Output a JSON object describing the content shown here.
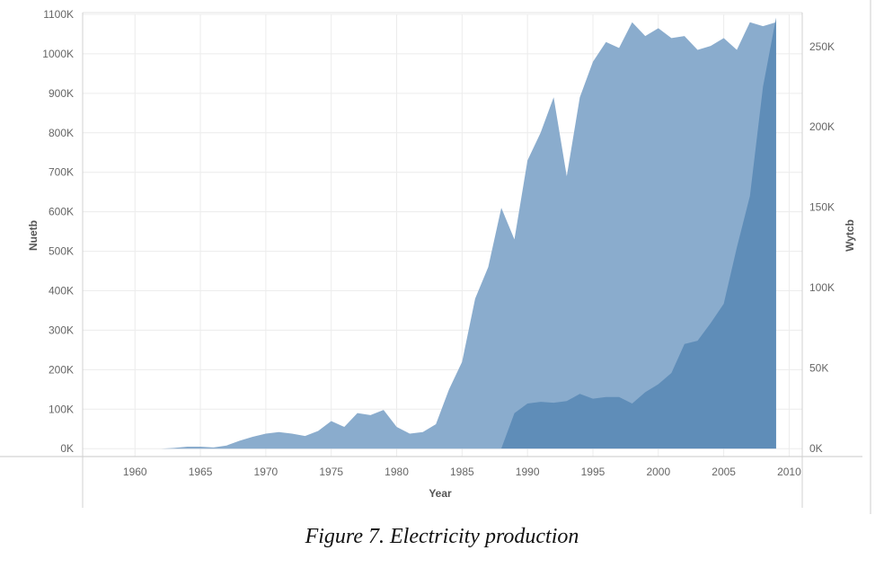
{
  "caption": "Figure 7. Electricity production",
  "chart_data": {
    "type": "area",
    "xlabel": "Year",
    "ylabel": "Nuetb",
    "y2label": "Wytcb",
    "xlim": [
      1956,
      2011
    ],
    "ylim": [
      -20000,
      1100000
    ],
    "y2lim": [
      -5000,
      270000
    ],
    "x_ticks": [
      1960,
      1965,
      1970,
      1975,
      1980,
      1985,
      1990,
      1995,
      2000,
      2005,
      2010
    ],
    "y_ticks": [
      0,
      100000,
      200000,
      300000,
      400000,
      500000,
      600000,
      700000,
      800000,
      900000,
      1000000,
      1100000
    ],
    "y_tick_labels": [
      "0K",
      "100K",
      "200K",
      "300K",
      "400K",
      "500K",
      "600K",
      "700K",
      "800K",
      "900K",
      "1000K",
      "1100K"
    ],
    "y2_ticks": [
      0,
      50000,
      100000,
      150000,
      200000,
      250000
    ],
    "y2_tick_labels": [
      "0K",
      "50K",
      "100K",
      "150K",
      "200K",
      "250K"
    ],
    "grid": true,
    "colors": {
      "Nuetb": "#8aaccd",
      "Wytcb": "#5f8db8"
    },
    "series": [
      {
        "name": "Nuetb",
        "axis": "left",
        "x": [
          1960,
          1961,
          1962,
          1963,
          1964,
          1965,
          1966,
          1967,
          1968,
          1969,
          1970,
          1971,
          1972,
          1973,
          1974,
          1975,
          1976,
          1977,
          1978,
          1979,
          1980,
          1981,
          1982,
          1983,
          1984,
          1985,
          1986,
          1987,
          1988,
          1989,
          1990,
          1991,
          1992,
          1993,
          1994,
          1995,
          1996,
          1997,
          1998,
          1999,
          2000,
          2001,
          2002,
          2003,
          2004,
          2005,
          2006,
          2007,
          2008,
          2009
        ],
        "values": [
          0,
          0,
          0,
          2000,
          5000,
          5000,
          3000,
          8000,
          20000,
          30000,
          38000,
          42000,
          38000,
          32000,
          45000,
          70000,
          55000,
          90000,
          85000,
          98000,
          55000,
          38000,
          42000,
          62000,
          150000,
          220000,
          380000,
          460000,
          610000,
          530000,
          730000,
          800000,
          890000,
          690000,
          890000,
          980000,
          1030000,
          1015000,
          1080000,
          1045000,
          1065000,
          1040000,
          1045000,
          1010000,
          1020000,
          1040000,
          1010000,
          1080000,
          1070000,
          1080000
        ]
      },
      {
        "name": "Wytcb",
        "axis": "right",
        "x": [
          1988,
          1989,
          1990,
          1991,
          1992,
          1993,
          1994,
          1995,
          1996,
          1997,
          1998,
          1999,
          2000,
          2001,
          2002,
          2003,
          2004,
          2005,
          2006,
          2007,
          2008,
          2009
        ],
        "values": [
          0,
          22000,
          28000,
          29000,
          28500,
          29500,
          34000,
          31000,
          32000,
          32000,
          28000,
          35000,
          40000,
          47000,
          65000,
          67000,
          78000,
          90000,
          125000,
          157000,
          225000,
          268000
        ]
      }
    ]
  }
}
